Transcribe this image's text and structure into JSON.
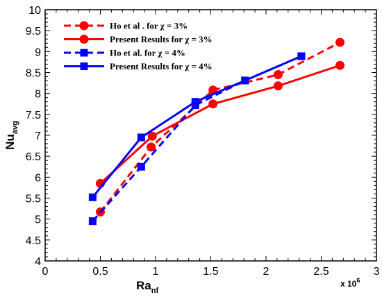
{
  "chart_data": {
    "type": "line",
    "xlabel": "Ra",
    "xlabel_sub": "nf",
    "ylabel": "Nu",
    "ylabel_sub": "avg",
    "x_multiplier_base": "x 10",
    "x_multiplier_exp": "6",
    "xlim": [
      0,
      3
    ],
    "ylim": [
      4,
      10
    ],
    "x_ticks": [
      0,
      0.5,
      1,
      1.5,
      2,
      2.5,
      3
    ],
    "x_tick_labels": [
      "0",
      "0.5",
      "1",
      "1.5",
      "2",
      "2.5",
      "3"
    ],
    "y_ticks": [
      4,
      4.5,
      5,
      5.5,
      6,
      6.5,
      7,
      7.5,
      8,
      8.5,
      9,
      9.5,
      10
    ],
    "y_tick_labels": [
      "4",
      "4.5",
      "5",
      "5.5",
      "6",
      "6.5",
      "7",
      "7.5",
      "8",
      "8.5",
      "9",
      "9.5",
      "10"
    ],
    "legend_position": "top-left",
    "series": [
      {
        "name": "Ho et al . for χ = 3%",
        "color": "#ff0000",
        "dash": "dashed",
        "marker": "circle",
        "x": [
          0.5,
          0.96,
          1.52,
          2.11,
          2.67
        ],
        "y": [
          5.17,
          6.72,
          8.08,
          8.45,
          9.22
        ]
      },
      {
        "name": "Present Results for χ = 3%",
        "color": "#ff0000",
        "dash": "solid",
        "marker": "circle",
        "x": [
          0.5,
          0.97,
          1.52,
          2.11,
          2.67
        ],
        "y": [
          5.85,
          6.98,
          7.75,
          8.18,
          8.67
        ]
      },
      {
        "name": "Ho et al. for χ = 4%",
        "color": "#0000ff",
        "dash": "dashed",
        "marker": "square",
        "x": [
          0.43,
          0.87,
          1.36,
          1.81,
          2.32
        ],
        "y": [
          4.95,
          6.25,
          7.72,
          8.31,
          8.89
        ]
      },
      {
        "name": "Present Results for χ = 4%",
        "color": "#0000ff",
        "dash": "solid",
        "marker": "square",
        "x": [
          0.43,
          0.87,
          1.36,
          1.81,
          2.32
        ],
        "y": [
          5.52,
          6.95,
          7.8,
          8.31,
          8.89
        ]
      }
    ]
  }
}
